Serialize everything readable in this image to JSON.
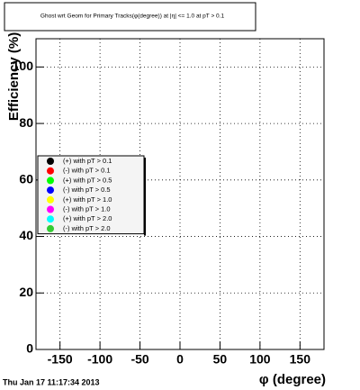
{
  "chart_data": {
    "type": "scatter",
    "title": "Ghost wrt Geom for Primary Tracks(φ(degree)) at |η| <= 1.0 at pT > 0.1",
    "x_label": "φ (degree)",
    "y_label": "Efficiency (%)",
    "timestamp": "Thu Jan 17 11:17:34 2013",
    "xlim": [
      -180,
      180
    ],
    "xticks": [
      -150,
      -100,
      -50,
      0,
      50,
      100,
      150
    ],
    "ylim": [
      0,
      110
    ],
    "yticks": [
      0,
      20,
      40,
      60,
      80,
      100
    ],
    "grid": true,
    "legend_position": "left",
    "series": [
      {
        "name": "(+) with pT > 0.1",
        "color": "#000000",
        "x": [],
        "values": []
      },
      {
        "name": "(-) with pT > 0.1",
        "color": "#ff0000",
        "x": [],
        "values": []
      },
      {
        "name": "(+) with pT > 0.5",
        "color": "#00ff00",
        "x": [],
        "values": []
      },
      {
        "name": "(-) with pT > 0.5",
        "color": "#0000ff",
        "x": [],
        "values": []
      },
      {
        "name": "(+) with pT > 1.0",
        "color": "#ffff00",
        "x": [],
        "values": []
      },
      {
        "name": "(-) with pT > 1.0",
        "color": "#ff00ff",
        "x": [],
        "values": []
      },
      {
        "name": "(+) with pT > 2.0",
        "color": "#00ffff",
        "x": [],
        "values": []
      },
      {
        "name": "(-) with pT > 2.0",
        "color": "#33cc33",
        "x": [],
        "values": []
      }
    ]
  }
}
